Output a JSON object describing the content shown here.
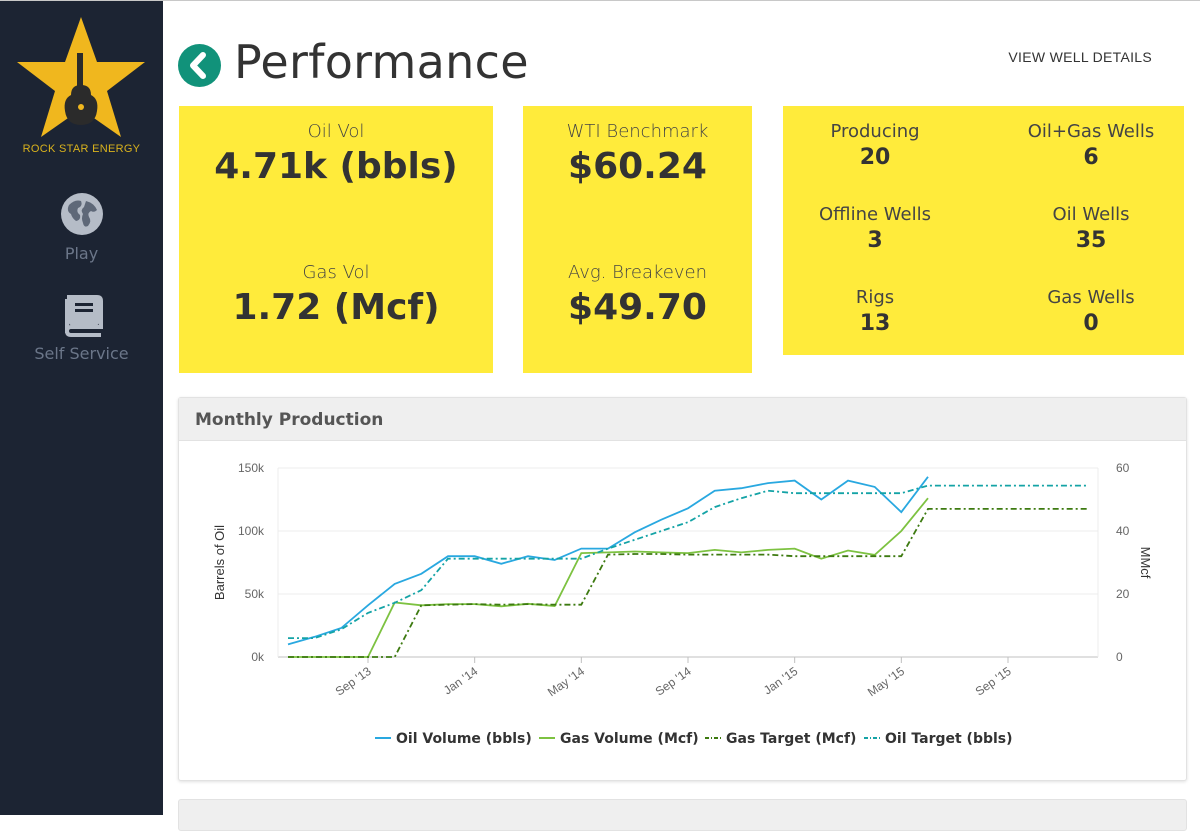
{
  "sidebar": {
    "brand": "ROCK STAR ENERGY",
    "items": [
      {
        "label": "Play",
        "icon": "globe-icon"
      },
      {
        "label": "Self Service",
        "icon": "book-icon"
      }
    ]
  },
  "header": {
    "title": "Performance",
    "link": "VIEW WELL DETAILS"
  },
  "volumes": {
    "oil_label": "Oil Vol",
    "oil_value": "4.71k (bbls)",
    "gas_label": "Gas Vol",
    "gas_value": "1.72 (Mcf)"
  },
  "prices": {
    "wti_label": "WTI Benchmark",
    "wti_value": "$60.24",
    "breakeven_label": "Avg. Breakeven",
    "breakeven_value": "$49.70"
  },
  "wells": [
    {
      "label": "Producing",
      "value": "20"
    },
    {
      "label": "Oil+Gas Wells",
      "value": "6"
    },
    {
      "label": "Offline Wells",
      "value": "3"
    },
    {
      "label": "Oil Wells",
      "value": "35"
    },
    {
      "label": "Rigs",
      "value": "13"
    },
    {
      "label": "Gas Wells",
      "value": "0"
    }
  ],
  "colors": {
    "accent": "#11927a",
    "card": "#ffeb3b",
    "sidebar": "#1c2433",
    "oil_volume": "#29a8e0",
    "gas_volume": "#7dc241",
    "gas_target": "#3d7a10",
    "oil_target": "#14a3a6"
  },
  "chart_data": {
    "type": "line",
    "title": "Monthly Production",
    "ylabel": "Barrels of Oil",
    "y2label": "MMcf",
    "ylim": [
      0,
      150000
    ],
    "y2lim": [
      0,
      60
    ],
    "yticks": [
      "0k",
      "50k",
      "100k",
      "150k"
    ],
    "y2ticks": [
      "0",
      "20",
      "40",
      "60"
    ],
    "xticks": [
      "Sep '13",
      "Jan '14",
      "May '14",
      "Sep '14",
      "Jan '15",
      "May '15",
      "Sep '15"
    ],
    "xlim": [
      "2013-06",
      "2015-12"
    ],
    "grid": true,
    "legend_position": "bottom",
    "series": [
      {
        "name": "Oil Volume (bbls)",
        "axis": "left",
        "style": "solid",
        "color": "#29a8e0",
        "x": [
          "2013-06",
          "2013-07",
          "2013-08",
          "2013-09",
          "2013-10",
          "2013-11",
          "2013-12",
          "2014-01",
          "2014-02",
          "2014-03",
          "2014-04",
          "2014-05",
          "2014-06",
          "2014-07",
          "2014-08",
          "2014-09",
          "2014-10",
          "2014-11",
          "2014-12",
          "2015-01",
          "2015-02",
          "2015-03",
          "2015-04",
          "2015-05",
          "2015-06"
        ],
        "y": [
          10000,
          16000,
          23000,
          41000,
          58000,
          66000,
          80000,
          80000,
          74000,
          80000,
          77000,
          86000,
          86000,
          99000,
          109000,
          118000,
          132000,
          134000,
          138000,
          140000,
          125000,
          140000,
          135000,
          115000,
          143000
        ]
      },
      {
        "name": "Gas Volume (Mcf)",
        "axis": "right",
        "style": "solid",
        "color": "#7dc241",
        "x": [
          "2013-06",
          "2013-07",
          "2013-08",
          "2013-09",
          "2013-10",
          "2013-11",
          "2013-12",
          "2014-01",
          "2014-02",
          "2014-03",
          "2014-04",
          "2014-05",
          "2014-06",
          "2014-07",
          "2014-08",
          "2014-09",
          "2014-10",
          "2014-11",
          "2014-12",
          "2015-01",
          "2015-02",
          "2015-03",
          "2015-04",
          "2015-05",
          "2015-06"
        ],
        "y": [
          0,
          0,
          0,
          0,
          17.3,
          16.4,
          16.8,
          16.8,
          16.1,
          16.9,
          16.2,
          33,
          33.2,
          33.5,
          33.2,
          33,
          34,
          33.2,
          34,
          34.4,
          31.2,
          33.8,
          32.4,
          40,
          50.4
        ]
      },
      {
        "name": "Gas Target (Mcf)",
        "axis": "right",
        "style": "dash-dot",
        "color": "#3d7a10",
        "x": [
          "2013-06",
          "2013-07",
          "2013-08",
          "2013-09",
          "2013-10",
          "2013-11",
          "2013-12",
          "2014-01",
          "2014-02",
          "2014-03",
          "2014-04",
          "2014-05",
          "2014-06",
          "2014-07",
          "2014-08",
          "2014-09",
          "2014-10",
          "2014-11",
          "2014-12",
          "2015-01",
          "2015-02",
          "2015-03",
          "2015-04",
          "2015-05",
          "2015-06",
          "2015-07",
          "2015-08",
          "2015-09",
          "2015-10",
          "2015-11",
          "2015-12"
        ],
        "y": [
          0,
          0,
          0,
          0,
          0,
          16.4,
          16.6,
          16.8,
          16.6,
          16.8,
          16.6,
          16.6,
          32.5,
          32.7,
          32.7,
          32.5,
          32.5,
          32.5,
          32.5,
          32,
          32,
          32,
          32,
          32,
          47,
          47,
          47,
          47,
          47,
          47,
          47
        ]
      },
      {
        "name": "Oil Target (bbls)",
        "axis": "left",
        "style": "dash-dot",
        "color": "#14a3a6",
        "x": [
          "2013-06",
          "2013-07",
          "2013-08",
          "2013-09",
          "2013-10",
          "2013-11",
          "2013-12",
          "2014-01",
          "2014-02",
          "2014-03",
          "2014-04",
          "2014-05",
          "2014-06",
          "2014-07",
          "2014-08",
          "2014-09",
          "2014-10",
          "2014-11",
          "2014-12",
          "2015-01",
          "2015-02",
          "2015-03",
          "2015-04",
          "2015-05",
          "2015-06",
          "2015-07",
          "2015-08",
          "2015-09",
          "2015-10",
          "2015-11",
          "2015-12"
        ],
        "y": [
          15000,
          15000,
          22000,
          35000,
          43000,
          53000,
          78000,
          78000,
          78000,
          78000,
          78000,
          78000,
          86000,
          93000,
          100000,
          107000,
          119000,
          126000,
          132000,
          130000,
          130000,
          130000,
          130000,
          130000,
          136000,
          136000,
          136000,
          136000,
          136000,
          136000,
          136000
        ]
      }
    ]
  }
}
